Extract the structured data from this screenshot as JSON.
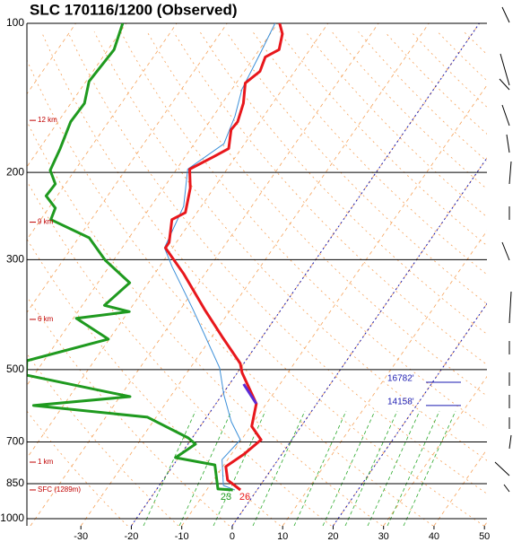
{
  "chart_data": {
    "type": "skewt",
    "title": "SLC   170116/1200  (Observed)",
    "ylim": [
      100,
      1034
    ],
    "log_y": true,
    "yticks": [
      100,
      200,
      300,
      500,
      700,
      850,
      1000
    ],
    "xlim": [
      -40.7,
      50.5
    ],
    "xticks": [
      -30,
      -20,
      -10,
      0,
      10,
      20,
      30,
      40,
      50
    ],
    "series": [
      {
        "color": "#3b8fd9",
        "width": 1,
        "pressure": [
          100,
          115,
          136,
          154,
          175,
          197,
          234,
          284,
          310,
          378,
          496,
          563,
          637,
          693,
          760,
          857,
          875
        ],
        "values": [
          -60.5,
          -59.3,
          -58.0,
          -55.7,
          -54.1,
          -57.8,
          -53.5,
          -51.6,
          -47.5,
          -37.5,
          -24.2,
          -19.6,
          -14.5,
          -10.2,
          -11.1,
          -7.3,
          -4.4
        ]
      },
      {
        "color": "#e8171c",
        "width": 3,
        "pressure": [
          100,
          105,
          113,
          117,
          125,
          132,
          145,
          158,
          164,
          179,
          186,
          197,
          215,
          241,
          249,
          277,
          284,
          320,
          378,
          429,
          486,
          507,
          586,
          651,
          693,
          741,
          785,
          836,
          875
        ],
        "values": [
          -59.6,
          -57.6,
          -56.1,
          -57.8,
          -56.9,
          -58.2,
          -55.8,
          -54.4,
          -54.6,
          -52.5,
          -54.4,
          -57.4,
          -54.7,
          -52.3,
          -54.0,
          -51.4,
          -51.4,
          -44.3,
          -35.2,
          -28.0,
          -20.7,
          -19.1,
          -12.0,
          -9.8,
          -6.1,
          -7.5,
          -9.4,
          -7.2,
          -3.3
        ]
      },
      {
        "color": "#5a2bd6",
        "width": 3,
        "pressure": [
          535,
          586
        ],
        "values": [
          -17.2,
          -12.0
        ]
      },
      {
        "color": "#1f9a1f",
        "width": 3,
        "pressure": [
          100,
          113,
          131,
          145,
          158,
          179,
          198,
          211,
          223,
          236,
          249,
          271,
          301,
          334,
          371,
          382,
          394,
          434,
          480,
          513,
          567,
          591,
          624,
          687,
          707,
          753,
          779,
          871,
          875
        ],
        "values": [
          -90.7,
          -88.8,
          -89.4,
          -87.3,
          -87.5,
          -85.9,
          -84.9,
          -82.0,
          -82.2,
          -78.7,
          -78.0,
          -67.9,
          -61.6,
          -53.7,
          -55.6,
          -49.8,
          -59.4,
          -50.2,
          -63.4,
          -61.5,
          -38.0,
          -55.9,
          -31.7,
          -20.8,
          -18.5,
          -20.6,
          -11.8,
          -7.9,
          -4.8
        ]
      }
    ],
    "height_labels": [
      {
        "label": "12 km",
        "pressure": 157
      },
      {
        "label": "9 km",
        "pressure": 252
      },
      {
        "label": "6 km",
        "pressure": 396
      },
      {
        "label": "1 km",
        "pressure": 769
      },
      {
        "label": "SFC (1289m)",
        "pressure": 875
      }
    ],
    "level_labels": [
      {
        "label": "16782'",
        "pressure": 526
      },
      {
        "label": "14158'",
        "pressure": 586
      }
    ],
    "surface_labels": [
      {
        "label": "23",
        "color": "#1f9a1f"
      },
      {
        "label": "26",
        "color": "#e8171c"
      }
    ]
  }
}
